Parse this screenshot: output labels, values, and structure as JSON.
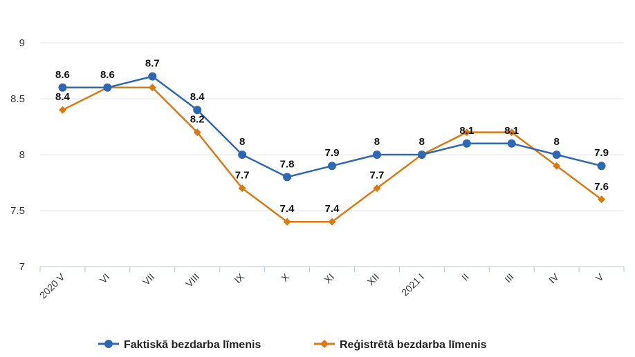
{
  "chart_data": {
    "type": "line",
    "categories": [
      "2020 V",
      "VI",
      "VII",
      "VIII",
      "IX",
      "X",
      "XI",
      "XII",
      "2021 I",
      "II",
      "III",
      "IV",
      "V"
    ],
    "ylim": [
      7,
      9
    ],
    "yticks": [
      "7",
      "7.5",
      "8",
      "8.5",
      "9"
    ],
    "grid": true,
    "legend_position": "bottom",
    "series": [
      {
        "name": "Faktiskā bezdarba līmenis",
        "color": "#2e67b2",
        "marker": "circle",
        "values": [
          8.6,
          8.6,
          8.7,
          8.4,
          8.0,
          7.8,
          7.9,
          8.0,
          8.0,
          8.1,
          8.1,
          8.0,
          7.9
        ],
        "labels": [
          "8.6",
          "8.6",
          "8.7",
          "8.4",
          "8",
          "7.8",
          "7.9",
          "8",
          "8",
          "8.1",
          "8.1",
          "8",
          "7.9"
        ]
      },
      {
        "name": "Reģistrētā bezdarba līmenis",
        "color": "#d97a10",
        "marker": "diamond",
        "values": [
          8.4,
          8.6,
          8.6,
          8.2,
          7.7,
          7.4,
          7.4,
          7.7,
          8.0,
          8.2,
          8.2,
          7.9,
          7.6
        ],
        "labels": [
          "8.4",
          "",
          "",
          "8.2",
          "7.7",
          "7.4",
          "7.4",
          "7.7",
          "",
          "",
          "",
          "",
          "7.6"
        ]
      }
    ]
  }
}
